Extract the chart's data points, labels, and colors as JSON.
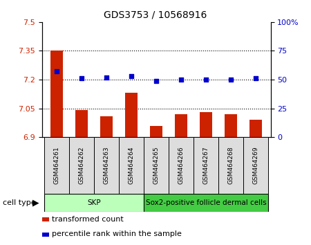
{
  "title": "GDS3753 / 10568916",
  "samples": [
    "GSM464261",
    "GSM464262",
    "GSM464263",
    "GSM464264",
    "GSM464265",
    "GSM464266",
    "GSM464267",
    "GSM464268",
    "GSM464269"
  ],
  "transformed_count": [
    7.35,
    7.04,
    7.01,
    7.13,
    6.96,
    7.02,
    7.03,
    7.02,
    6.99
  ],
  "percentile_rank": [
    57,
    51,
    52,
    53,
    49,
    50,
    50,
    50,
    51
  ],
  "ylim_left": [
    6.9,
    7.5
  ],
  "ylim_right": [
    0,
    100
  ],
  "yticks_left": [
    6.9,
    7.05,
    7.2,
    7.35,
    7.5
  ],
  "yticks_right": [
    0,
    25,
    50,
    75,
    100
  ],
  "ytick_labels_left": [
    "6.9",
    "7.05",
    "7.2",
    "7.35",
    "7.5"
  ],
  "ytick_labels_right": [
    "0",
    "25",
    "50",
    "75",
    "100%"
  ],
  "hlines": [
    7.05,
    7.2,
    7.35
  ],
  "bar_color": "#cc2200",
  "dot_color": "#0000cc",
  "cell_type_groups": [
    {
      "label": "SKP",
      "start": 0,
      "end": 3,
      "color": "#bbffbb"
    },
    {
      "label": "Sox2-positive follicle dermal cells",
      "start": 4,
      "end": 8,
      "color": "#44cc44"
    }
  ],
  "legend_bar_label": "transformed count",
  "legend_dot_label": "percentile rank within the sample",
  "cell_type_label": "cell type",
  "tick_label_color_left": "#cc2200",
  "tick_label_color_right": "#0000cc",
  "sample_box_color": "#dddddd"
}
